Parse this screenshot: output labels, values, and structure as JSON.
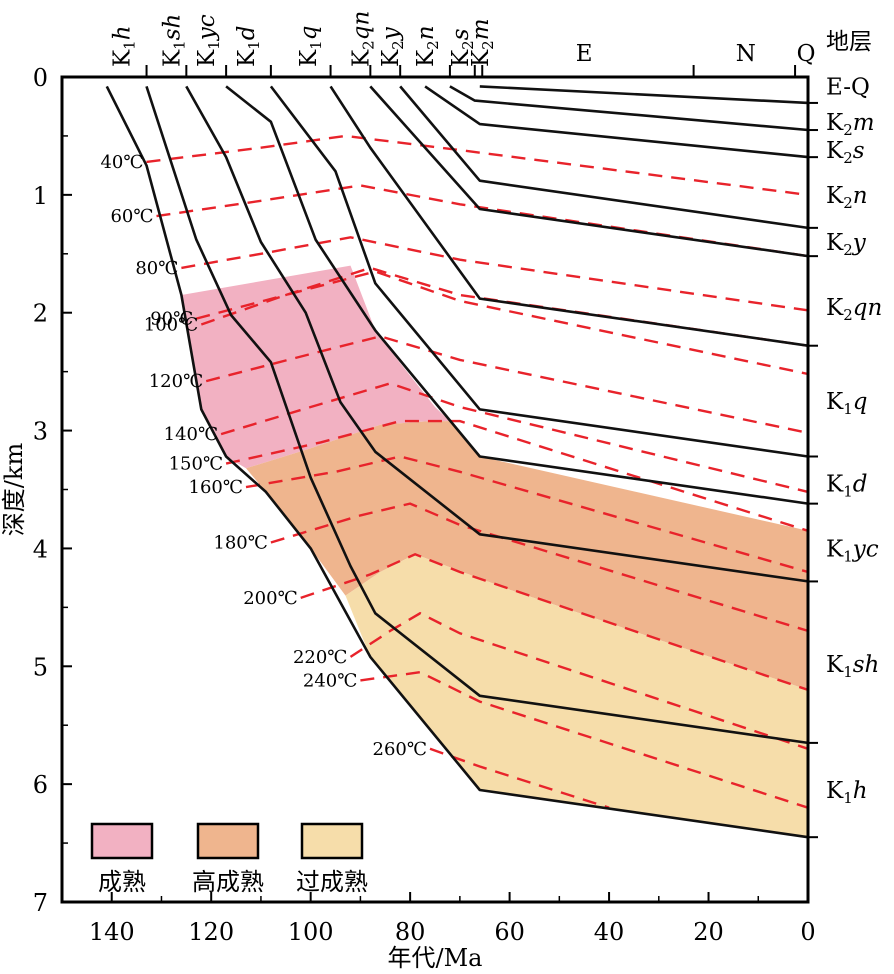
{
  "chart_data": {
    "type": "line",
    "title": "",
    "xlabel": "年代/Ma",
    "ylabel": "深度/km",
    "xlim": [
      150,
      0
    ],
    "ylim": [
      0,
      7
    ],
    "x_ticks": [
      140,
      120,
      100,
      80,
      60,
      40,
      20,
      0
    ],
    "y_ticks": [
      0,
      1,
      2,
      3,
      4,
      5,
      6,
      7
    ],
    "grid": false,
    "top_header": "地层",
    "top_units": [
      {
        "label": "K",
        "sub": "1",
        "suffix": "h",
        "x": 138
      },
      {
        "label": "K",
        "sub": "1",
        "suffix": "sh",
        "x": 128
      },
      {
        "label": "K",
        "sub": "1",
        "suffix": "yc",
        "x": 121
      },
      {
        "label": "K",
        "sub": "1",
        "suffix": "d",
        "x": 113
      },
      {
        "label": "K",
        "sub": "1",
        "suffix": "q",
        "x": 100.5
      },
      {
        "label": "K",
        "sub": "2",
        "suffix": "qn",
        "x": 90
      },
      {
        "label": "K",
        "sub": "2",
        "suffix": "y",
        "x": 84
      },
      {
        "label": "K",
        "sub": "2",
        "suffix": "n",
        "x": 77
      },
      {
        "label": "K",
        "sub": "2",
        "suffix": "s",
        "x": 70
      },
      {
        "label": "K",
        "sub": "2",
        "suffix": "m",
        "x": 66
      },
      {
        "label": "E",
        "sub": "",
        "suffix": "",
        "x": 45
      },
      {
        "label": "N",
        "sub": "",
        "suffix": "",
        "x": 12.5
      },
      {
        "label": "Q",
        "sub": "",
        "suffix": "",
        "x": 0.4
      }
    ],
    "top_unit_boundaries": [
      133,
      125,
      117,
      108,
      96,
      88,
      82,
      72,
      67,
      65.5,
      23,
      2.6
    ],
    "strata_labels": [
      {
        "label": "E-Q",
        "sub": "",
        "suffix": "",
        "depth": 0.08
      },
      {
        "label": "K",
        "sub": "2",
        "suffix": "m",
        "depth": 0.38
      },
      {
        "label": "K",
        "sub": "2",
        "suffix": "s",
        "depth": 0.62
      },
      {
        "label": "K",
        "sub": "2",
        "suffix": "n",
        "depth": 1.0
      },
      {
        "label": "K",
        "sub": "2",
        "suffix": "y",
        "depth": 1.4
      },
      {
        "label": "K",
        "sub": "2",
        "suffix": "qn",
        "depth": 1.95
      },
      {
        "label": "K",
        "sub": "1",
        "suffix": "q",
        "depth": 2.75
      },
      {
        "label": "K",
        "sub": "1",
        "suffix": "d",
        "depth": 3.45
      },
      {
        "label": "K",
        "sub": "1",
        "suffix": "yc",
        "depth": 4.0
      },
      {
        "label": "K",
        "sub": "1",
        "suffix": "sh",
        "depth": 4.98
      },
      {
        "label": "K",
        "sub": "1",
        "suffix": "h",
        "depth": 6.05
      }
    ],
    "right_ticks": [
      0.22,
      0.45,
      0.68,
      1.28,
      1.52,
      2.28,
      3.22,
      3.62,
      4.28,
      5.65,
      6.45
    ],
    "burial_series": [
      {
        "points": [
          [
            66,
            0.08
          ],
          [
            0,
            0.22
          ]
        ]
      },
      {
        "points": [
          [
            72,
            0.08
          ],
          [
            67,
            0.2
          ],
          [
            0,
            0.45
          ]
        ]
      },
      {
        "points": [
          [
            77,
            0.08
          ],
          [
            66,
            0.4
          ],
          [
            0,
            0.68
          ]
        ]
      },
      {
        "points": [
          [
            82,
            0.08
          ],
          [
            66,
            0.88
          ],
          [
            0,
            1.28
          ]
        ]
      },
      {
        "points": [
          [
            88,
            0.08
          ],
          [
            66,
            1.12
          ],
          [
            0,
            1.52
          ]
        ]
      },
      {
        "points": [
          [
            96,
            0.08
          ],
          [
            88,
            0.6
          ],
          [
            66,
            1.88
          ],
          [
            0,
            2.28
          ]
        ]
      },
      {
        "points": [
          [
            108,
            0.08
          ],
          [
            95,
            0.8
          ],
          [
            87,
            1.75
          ],
          [
            66,
            2.82
          ],
          [
            0,
            3.22
          ]
        ]
      },
      {
        "points": [
          [
            117,
            0.08
          ],
          [
            108,
            0.38
          ],
          [
            99,
            1.38
          ],
          [
            87,
            2.15
          ],
          [
            66,
            3.22
          ],
          [
            0,
            3.62
          ]
        ]
      },
      {
        "points": [
          [
            125,
            0.08
          ],
          [
            117,
            0.68
          ],
          [
            110,
            1.4
          ],
          [
            101,
            2.0
          ],
          [
            94,
            2.76
          ],
          [
            87,
            3.18
          ],
          [
            66,
            3.88
          ],
          [
            0,
            4.28
          ]
        ]
      },
      {
        "points": [
          [
            133,
            0.08
          ],
          [
            123,
            1.38
          ],
          [
            116,
            2.02
          ],
          [
            108,
            2.42
          ],
          [
            100,
            3.4
          ],
          [
            92,
            4.15
          ],
          [
            87,
            4.55
          ],
          [
            66,
            5.25
          ],
          [
            0,
            5.65
          ]
        ]
      },
      {
        "points": [
          [
            141,
            0.08
          ],
          [
            133,
            0.75
          ],
          [
            126,
            1.85
          ],
          [
            122,
            2.82
          ],
          [
            117,
            3.22
          ],
          [
            109,
            3.52
          ],
          [
            100,
            4.0
          ],
          [
            88,
            4.92
          ],
          [
            66,
            6.05
          ],
          [
            0,
            6.45
          ]
        ]
      }
    ],
    "isotherms": [
      {
        "label": "40℃",
        "points": [
          [
            133,
            0.72
          ],
          [
            110,
            0.6
          ],
          [
            93,
            0.5
          ],
          [
            70,
            0.62
          ],
          [
            0,
            1.0
          ]
        ]
      },
      {
        "label": "60℃",
        "points": [
          [
            131,
            1.18
          ],
          [
            110,
            1.05
          ],
          [
            90,
            0.92
          ],
          [
            70,
            1.08
          ],
          [
            0,
            1.52
          ]
        ]
      },
      {
        "label": "80℃",
        "points": [
          [
            126,
            1.62
          ],
          [
            110,
            1.5
          ],
          [
            92,
            1.36
          ],
          [
            70,
            1.55
          ],
          [
            0,
            1.98
          ]
        ]
      },
      {
        "label": "90℃",
        "points": [
          [
            123,
            2.05
          ],
          [
            105,
            1.85
          ],
          [
            88,
            1.62
          ],
          [
            70,
            1.85
          ],
          [
            0,
            2.28
          ]
        ]
      },
      {
        "label": "100℃",
        "points": [
          [
            122,
            2.1
          ],
          [
            105,
            1.85
          ],
          [
            87,
            1.65
          ],
          [
            70,
            1.9
          ],
          [
            0,
            2.52
          ]
        ]
      },
      {
        "label": "120℃",
        "points": [
          [
            121,
            2.58
          ],
          [
            100,
            2.35
          ],
          [
            86,
            2.2
          ],
          [
            70,
            2.4
          ],
          [
            0,
            3.02
          ]
        ]
      },
      {
        "label": "140℃",
        "points": [
          [
            118,
            3.03
          ],
          [
            100,
            2.8
          ],
          [
            84,
            2.6
          ],
          [
            70,
            2.8
          ],
          [
            0,
            3.52
          ]
        ]
      },
      {
        "label": "150℃",
        "points": [
          [
            117,
            3.28
          ],
          [
            98,
            3.1
          ],
          [
            82,
            2.92
          ],
          [
            70,
            2.92
          ],
          [
            0,
            3.85
          ]
        ]
      },
      {
        "label": "160℃",
        "points": [
          [
            113,
            3.48
          ],
          [
            95,
            3.35
          ],
          [
            82,
            3.22
          ],
          [
            70,
            3.35
          ],
          [
            0,
            4.2
          ]
        ]
      },
      {
        "label": "180℃",
        "points": [
          [
            108,
            3.95
          ],
          [
            90,
            3.72
          ],
          [
            80,
            3.62
          ],
          [
            70,
            3.8
          ],
          [
            0,
            4.7
          ]
        ]
      },
      {
        "label": "200℃",
        "points": [
          [
            102,
            4.42
          ],
          [
            88,
            4.22
          ],
          [
            79,
            4.05
          ],
          [
            70,
            4.2
          ],
          [
            0,
            5.2
          ]
        ]
      },
      {
        "label": "220℃",
        "points": [
          [
            92,
            4.92
          ],
          [
            84,
            4.7
          ],
          [
            78,
            4.55
          ],
          [
            70,
            4.72
          ],
          [
            0,
            5.7
          ]
        ]
      },
      {
        "label": "240℃",
        "points": [
          [
            90,
            5.12
          ],
          [
            78,
            5.05
          ],
          [
            66,
            5.3
          ],
          [
            0,
            6.2
          ]
        ]
      },
      {
        "label": "260℃",
        "points": [
          [
            76,
            5.7
          ],
          [
            66,
            5.85
          ],
          [
            40,
            6.2
          ]
        ]
      }
    ],
    "zones": [
      {
        "name": "成熟",
        "color": "#f2b1c2",
        "polygon": [
          [
            126,
            1.85
          ],
          [
            122,
            2.82
          ],
          [
            117,
            3.22
          ],
          [
            113,
            3.32
          ],
          [
            100,
            3.15
          ],
          [
            86,
            2.95
          ],
          [
            76,
            2.92
          ],
          [
            72,
            2.92
          ],
          [
            75,
            2.8
          ],
          [
            84,
            2.32
          ],
          [
            87,
            2.15
          ],
          [
            92,
            1.6
          ],
          [
            126,
            1.85
          ]
        ]
      },
      {
        "name": "高成熟",
        "color": "#efb58e",
        "polygon": [
          [
            113,
            3.32
          ],
          [
            109,
            3.52
          ],
          [
            100,
            4.0
          ],
          [
            93,
            4.4
          ],
          [
            86,
            4.2
          ],
          [
            79,
            4.05
          ],
          [
            60,
            4.35
          ],
          [
            0,
            5.2
          ],
          [
            0,
            3.85
          ],
          [
            66,
            3.22
          ],
          [
            72,
            2.92
          ],
          [
            76,
            2.92
          ],
          [
            86,
            2.95
          ],
          [
            100,
            3.15
          ],
          [
            113,
            3.32
          ]
        ]
      },
      {
        "name": "过成熟",
        "color": "#f6ddaa",
        "polygon": [
          [
            93,
            4.4
          ],
          [
            88,
            4.92
          ],
          [
            66,
            6.05
          ],
          [
            0,
            6.45
          ],
          [
            0,
            5.2
          ],
          [
            60,
            4.35
          ],
          [
            79,
            4.05
          ],
          [
            86,
            4.2
          ],
          [
            93,
            4.4
          ]
        ]
      }
    ],
    "legend": [
      {
        "label": "成熟",
        "color": "#f2b1c2"
      },
      {
        "label": "高成熟",
        "color": "#efb58e"
      },
      {
        "label": "过成熟",
        "color": "#f6ddaa"
      }
    ],
    "colors": {
      "isotherm": "#e8232b",
      "burial": "#111111",
      "axis": "#000000"
    }
  }
}
